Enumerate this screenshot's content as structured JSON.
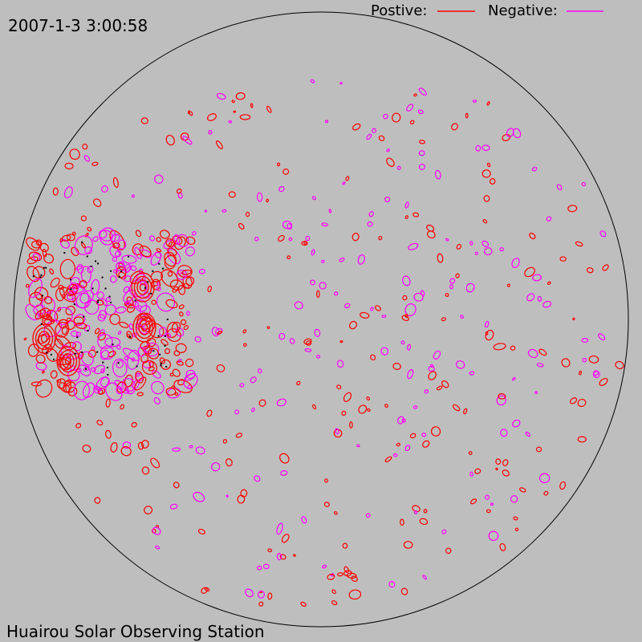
{
  "header": {
    "timestamp": "2007-1-3 3:00:58"
  },
  "legend": {
    "positive": "Postive:",
    "negative": "Negative:"
  },
  "footer": {
    "station": "Huairou Solar Observing Station"
  }
}
